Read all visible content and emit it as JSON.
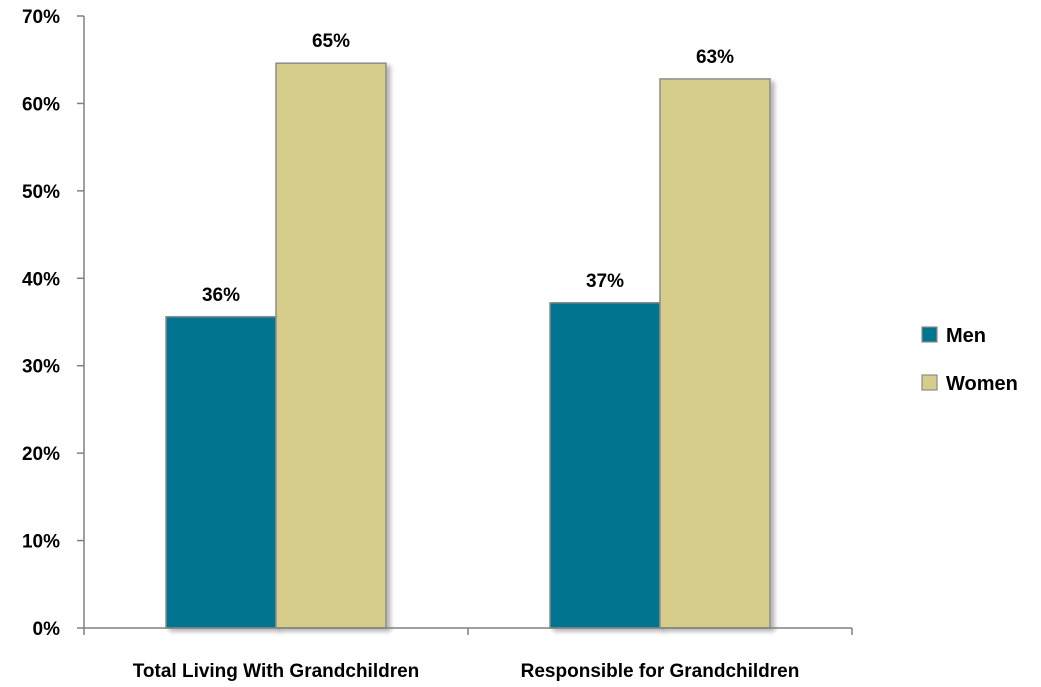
{
  "chart_data": {
    "type": "bar",
    "categories": [
      "Total Living With Grandchildren",
      "Responsible for Grandchildren"
    ],
    "series": [
      {
        "name": "Men",
        "values": [
          35.6,
          37.2
        ],
        "labels": [
          "36%",
          "37%"
        ],
        "color": "#00758F"
      },
      {
        "name": "Women",
        "values": [
          64.6,
          62.8
        ],
        "labels": [
          "65%",
          "63%"
        ],
        "color": "#D6CD8A"
      }
    ],
    "ylim": [
      0,
      70
    ],
    "yticks": [
      "0%",
      "10%",
      "20%",
      "30%",
      "40%",
      "50%",
      "60%",
      "70%"
    ],
    "grid": false,
    "legend_position": "right",
    "bar_edge_color": "#8C8C8C",
    "axis_color": "#808080"
  }
}
